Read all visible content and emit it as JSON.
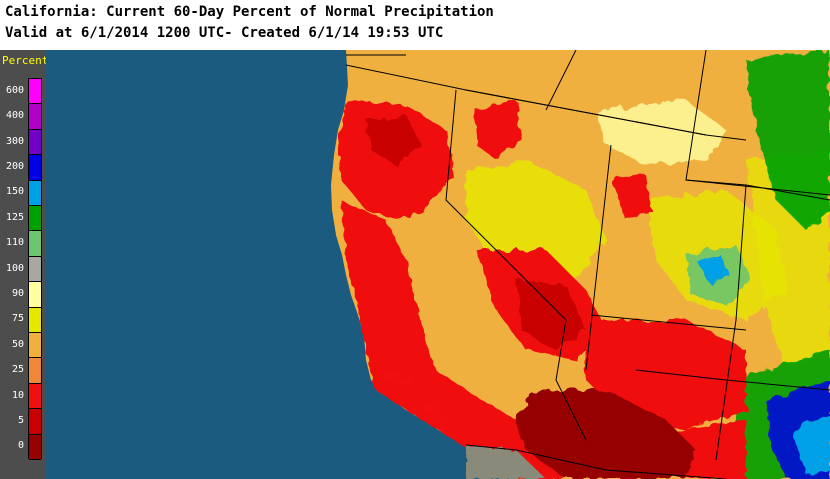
{
  "header": {
    "title_line1": "California: Current 60-Day Percent of Normal Precipitation",
    "title_line2": "Valid at 6/1/2014 1200 UTC- Created 6/1/14 19:53 UTC"
  },
  "legend": {
    "title": "Percent",
    "items": [
      {
        "label": "600",
        "color": "#ff00ff"
      },
      {
        "label": "400",
        "color": "#b000c8"
      },
      {
        "label": "300",
        "color": "#7300c8"
      },
      {
        "label": "200",
        "color": "#0000e6"
      },
      {
        "label": "150",
        "color": "#00a0e6"
      },
      {
        "label": "125",
        "color": "#00a000"
      },
      {
        "label": "110",
        "color": "#6cc46c"
      },
      {
        "label": "100",
        "color": "#a8a8a0"
      },
      {
        "label": "90",
        "color": "#ffffa0"
      },
      {
        "label": "75",
        "color": "#e6e600"
      },
      {
        "label": "50",
        "color": "#f0b040"
      },
      {
        "label": "25",
        "color": "#f0883c"
      },
      {
        "label": "10",
        "color": "#f01010"
      },
      {
        "label": "5",
        "color": "#c80000"
      },
      {
        "label": "0",
        "color": "#960000"
      }
    ]
  },
  "map": {
    "ocean_color": "#1b5b7f",
    "border_color": "#000000"
  }
}
